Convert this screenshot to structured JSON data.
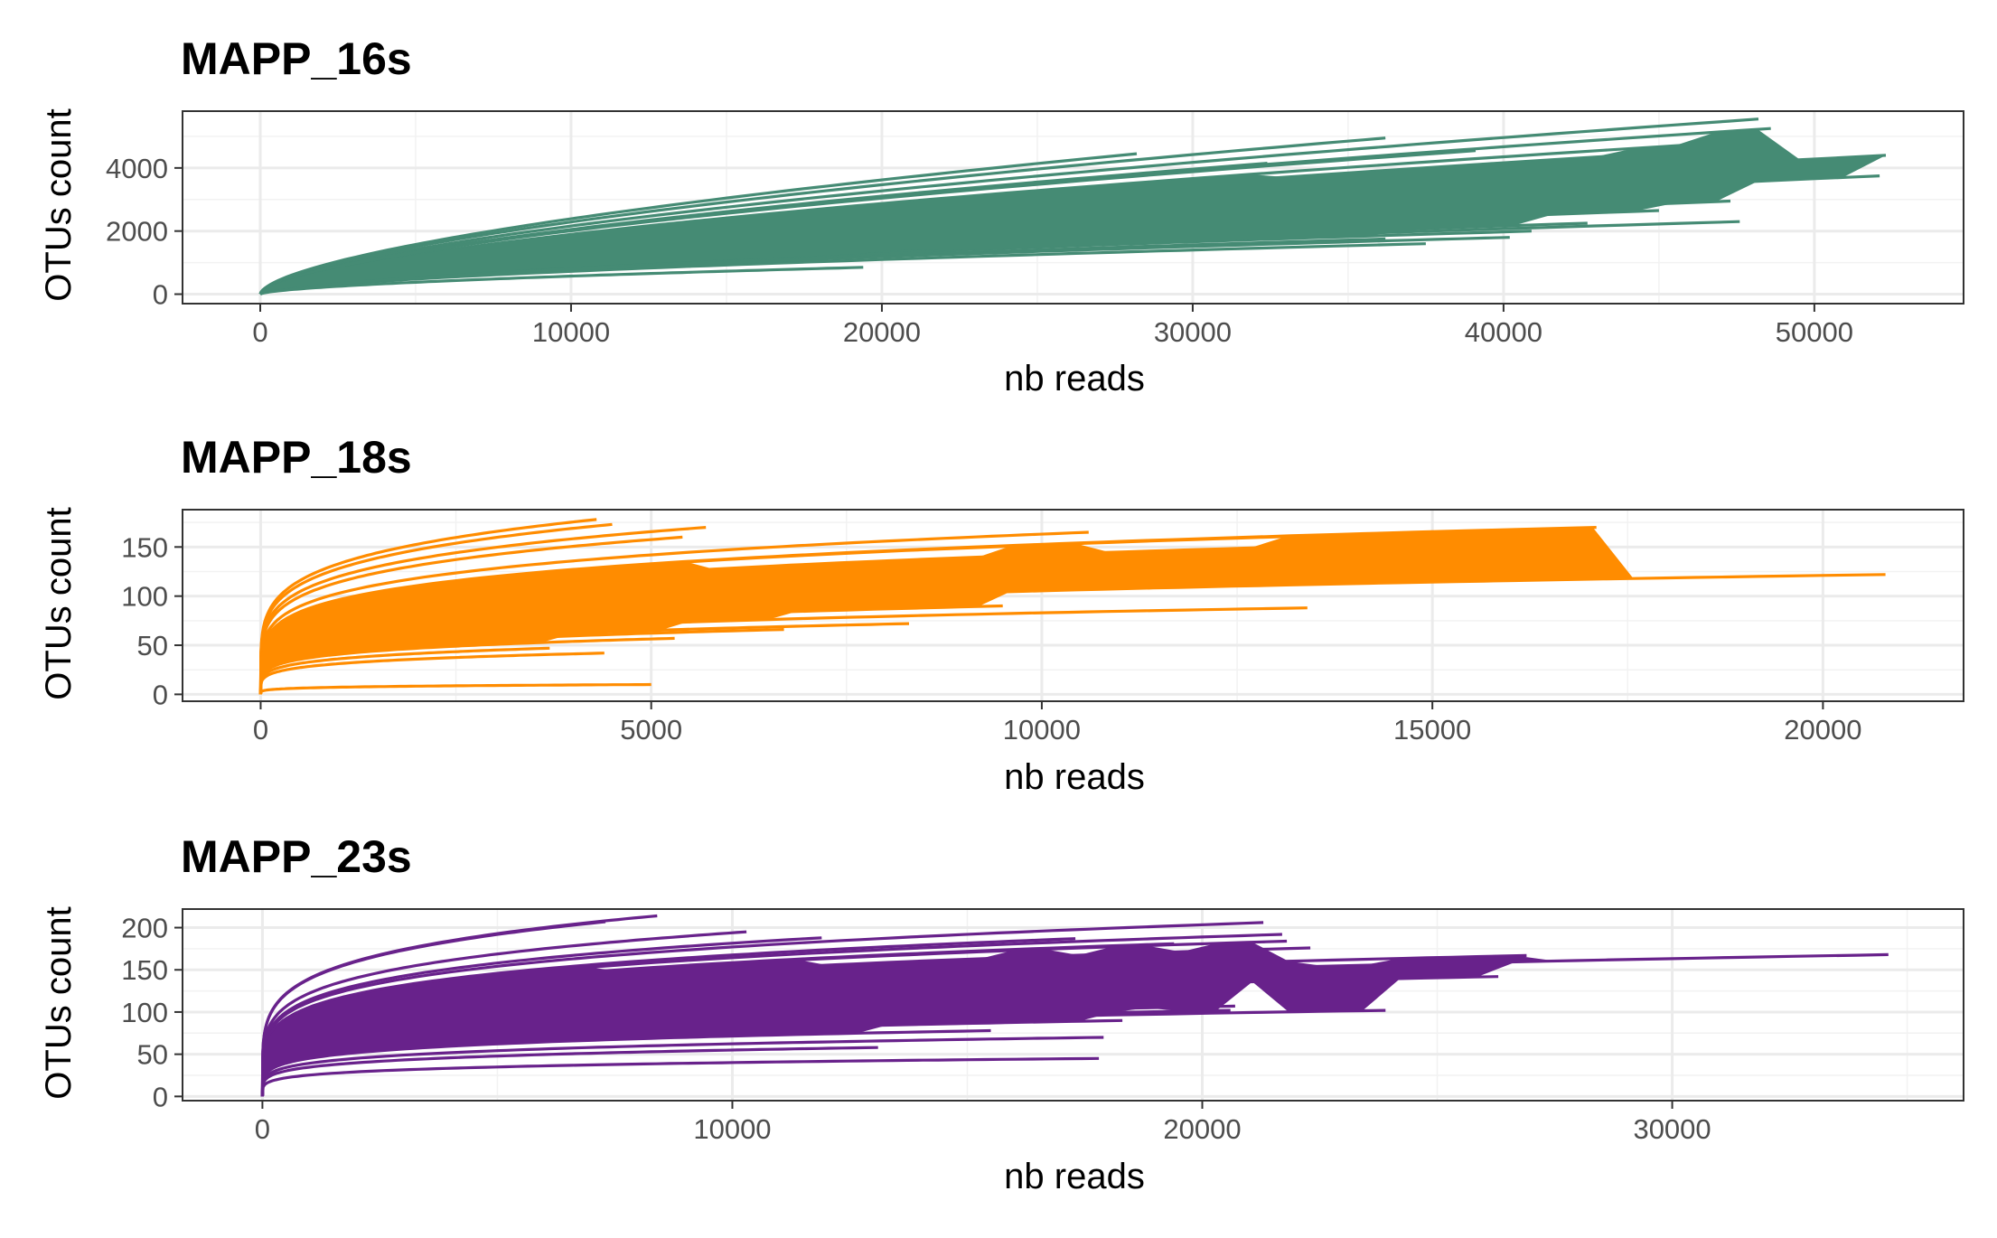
{
  "chart_data": [
    {
      "type": "line",
      "title": "MAPP_16s",
      "xlabel": "nb reads",
      "ylabel": "OTUs count",
      "color": "#458B74",
      "xlim": [
        -2500,
        54800
      ],
      "ylim": [
        -300,
        5800
      ],
      "x_ticks": [
        0,
        10000,
        20000,
        30000,
        40000,
        50000
      ],
      "y_ticks": [
        0,
        2000,
        4000
      ],
      "grid": true,
      "series": [
        {
          "x_end": 48200,
          "y_end": 5550
        },
        {
          "x_end": 48600,
          "y_end": 5250
        },
        {
          "x_end": 47900,
          "y_end": 4850
        },
        {
          "x_end": 52300,
          "y_end": 4400
        },
        {
          "x_end": 49000,
          "y_end": 4050
        },
        {
          "x_end": 52100,
          "y_end": 3750
        },
        {
          "x_end": 36200,
          "y_end": 4950
        },
        {
          "x_end": 28200,
          "y_end": 4450
        },
        {
          "x_end": 32400,
          "y_end": 4150
        },
        {
          "x_end": 39100,
          "y_end": 4550
        },
        {
          "x_end": 44700,
          "y_end": 4450
        },
        {
          "x_end": 40800,
          "y_end": 4200
        },
        {
          "x_end": 42800,
          "y_end": 3950
        },
        {
          "x_end": 46400,
          "y_end": 3550
        },
        {
          "x_end": 46300,
          "y_end": 3000
        },
        {
          "x_end": 47300,
          "y_end": 2950
        },
        {
          "x_end": 43600,
          "y_end": 2950
        },
        {
          "x_end": 42100,
          "y_end": 2600
        },
        {
          "x_end": 45000,
          "y_end": 2650
        },
        {
          "x_end": 42700,
          "y_end": 2250
        },
        {
          "x_end": 40900,
          "y_end": 2000
        },
        {
          "x_end": 47600,
          "y_end": 2300
        },
        {
          "x_end": 36200,
          "y_end": 1750
        },
        {
          "x_end": 37500,
          "y_end": 1600
        },
        {
          "x_end": 40200,
          "y_end": 1800
        },
        {
          "x_end": 25400,
          "y_end": 3000
        },
        {
          "x_end": 21900,
          "y_end": 2150
        },
        {
          "x_end": 19400,
          "y_end": 850
        }
      ]
    },
    {
      "type": "line",
      "title": "MAPP_18s",
      "xlabel": "nb reads",
      "ylabel": "OTUs count",
      "color": "#FF8C00",
      "xlim": [
        -1000,
        21800
      ],
      "ylim": [
        -7,
        188
      ],
      "x_ticks": [
        0,
        5000,
        10000,
        15000,
        20000
      ],
      "y_ticks": [
        0,
        50,
        100,
        150
      ],
      "grid": true,
      "series": [
        {
          "x_end": 4300,
          "y_end": 178
        },
        {
          "x_end": 4500,
          "y_end": 173
        },
        {
          "x_end": 5700,
          "y_end": 170
        },
        {
          "x_end": 5400,
          "y_end": 160
        },
        {
          "x_end": 10600,
          "y_end": 165
        },
        {
          "x_end": 15500,
          "y_end": 166
        },
        {
          "x_end": 17100,
          "y_end": 170
        },
        {
          "x_end": 13100,
          "y_end": 150
        },
        {
          "x_end": 14000,
          "y_end": 148
        },
        {
          "x_end": 16300,
          "y_end": 130
        },
        {
          "x_end": 12700,
          "y_end": 140
        },
        {
          "x_end": 12800,
          "y_end": 128
        },
        {
          "x_end": 11900,
          "y_end": 122
        },
        {
          "x_end": 14300,
          "y_end": 122
        },
        {
          "x_end": 20800,
          "y_end": 122
        },
        {
          "x_end": 13400,
          "y_end": 88
        },
        {
          "x_end": 9500,
          "y_end": 90
        },
        {
          "x_end": 8300,
          "y_end": 72
        },
        {
          "x_end": 6700,
          "y_end": 66
        },
        {
          "x_end": 5300,
          "y_end": 57
        },
        {
          "x_end": 4400,
          "y_end": 42
        },
        {
          "x_end": 3700,
          "y_end": 47
        },
        {
          "x_end": 5000,
          "y_end": 10
        }
      ]
    },
    {
      "type": "line",
      "title": "MAPP_23s",
      "xlabel": "nb reads",
      "ylabel": "OTUs count",
      "color": "#68228B",
      "xlim": [
        -1700,
        36200
      ],
      "ylim": [
        -5,
        222
      ],
      "x_ticks": [
        0,
        10000,
        20000,
        30000
      ],
      "y_ticks": [
        0,
        50,
        100,
        150,
        200
      ],
      "grid": true,
      "series": [
        {
          "x_end": 8400,
          "y_end": 214
        },
        {
          "x_end": 7300,
          "y_end": 207
        },
        {
          "x_end": 21300,
          "y_end": 206
        },
        {
          "x_end": 21700,
          "y_end": 192
        },
        {
          "x_end": 22300,
          "y_end": 176
        },
        {
          "x_end": 21800,
          "y_end": 184
        },
        {
          "x_end": 10300,
          "y_end": 195
        },
        {
          "x_end": 11900,
          "y_end": 188
        },
        {
          "x_end": 17300,
          "y_end": 187
        },
        {
          "x_end": 19400,
          "y_end": 181
        },
        {
          "x_end": 34600,
          "y_end": 168
        },
        {
          "x_end": 26900,
          "y_end": 167
        },
        {
          "x_end": 20300,
          "y_end": 165
        },
        {
          "x_end": 24000,
          "y_end": 143
        },
        {
          "x_end": 26300,
          "y_end": 142
        },
        {
          "x_end": 18500,
          "y_end": 145
        },
        {
          "x_end": 20000,
          "y_end": 115
        },
        {
          "x_end": 20700,
          "y_end": 107
        },
        {
          "x_end": 20600,
          "y_end": 102
        },
        {
          "x_end": 23900,
          "y_end": 102
        },
        {
          "x_end": 18300,
          "y_end": 90
        },
        {
          "x_end": 16000,
          "y_end": 88
        },
        {
          "x_end": 15500,
          "y_end": 78
        },
        {
          "x_end": 17900,
          "y_end": 70
        },
        {
          "x_end": 13100,
          "y_end": 58
        },
        {
          "x_end": 17800,
          "y_end": 45
        }
      ]
    }
  ]
}
